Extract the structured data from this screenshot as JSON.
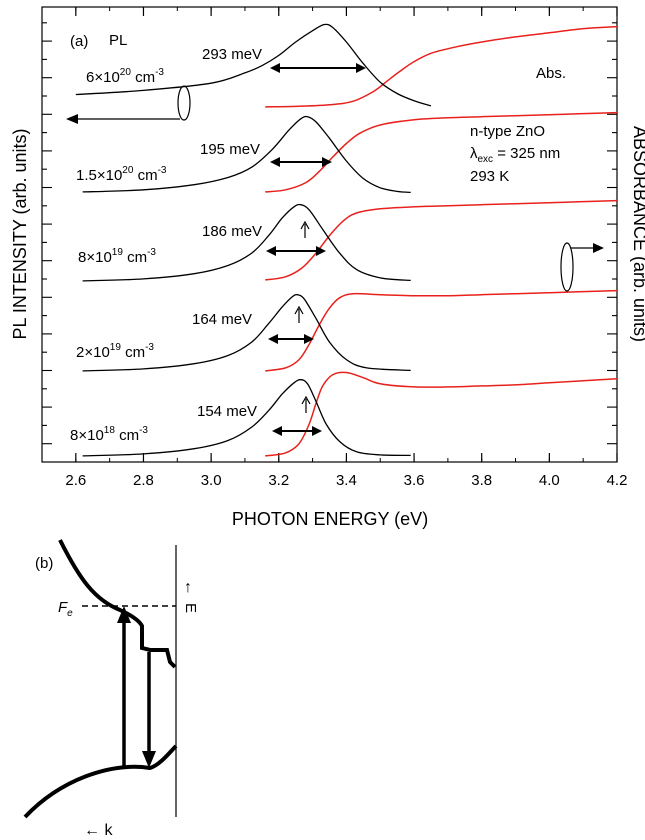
{
  "chart_data": [
    {
      "panel": "(a)",
      "type": "line",
      "xlabel": "PHOTON ENERGY (eV)",
      "ylabel_left": "PL INTENSITY (arb. units)",
      "ylabel_right": "ABSORBANCE (arb. units)",
      "xlim": [
        2.5,
        4.2
      ],
      "x_ticks": [
        "2.6",
        "2.8",
        "3.0",
        "3.2",
        "3.4",
        "3.6",
        "3.8",
        "4.0",
        "4.2"
      ],
      "grid": false,
      "label_pl": "PL",
      "label_abs": "Abs.",
      "sample_info": [
        "n-type ZnO",
        "325 nm",
        "293 K"
      ],
      "lambda_symbol": "λ",
      "lambda_sub": "exc",
      "lambda_eq": " = ",
      "colors": {
        "pl": "#000000",
        "abs": "#e8211c"
      },
      "series": [
        {
          "concentration": "6×10",
          "exponent": "20",
          "unit": " cm",
          "unit_exp": "-3",
          "fwhm": "293 meV",
          "pl": [
            [
              2.6,
              1.5
            ],
            [
              2.8,
              1.9
            ],
            [
              3.0,
              2.6
            ],
            [
              3.1,
              3.6
            ],
            [
              3.15,
              4.3
            ],
            [
              3.2,
              5.3
            ],
            [
              3.25,
              6.6
            ],
            [
              3.3,
              7.7
            ],
            [
              3.335,
              8.3
            ],
            [
              3.36,
              8.0
            ],
            [
              3.4,
              6.6
            ],
            [
              3.45,
              4.5
            ],
            [
              3.5,
              2.7
            ],
            [
              3.55,
              1.6
            ],
            [
              3.6,
              0.9
            ],
            [
              3.65,
              0.4
            ]
          ],
          "abs": [
            [
              3.16,
              0.3
            ],
            [
              3.25,
              0.35
            ],
            [
              3.35,
              0.5
            ],
            [
              3.42,
              0.85
            ],
            [
              3.48,
              1.8
            ],
            [
              3.52,
              2.8
            ],
            [
              3.56,
              3.8
            ],
            [
              3.6,
              4.7
            ],
            [
              3.65,
              5.5
            ],
            [
              3.72,
              6.1
            ],
            [
              3.8,
              6.6
            ],
            [
              3.9,
              7.1
            ],
            [
              4.0,
              7.5
            ],
            [
              4.1,
              7.9
            ],
            [
              4.2,
              8.1
            ]
          ]
        },
        {
          "concentration": "1.5×10",
          "exponent": "20",
          "unit": " cm",
          "unit_exp": "-3",
          "fwhm": "195 meV",
          "pl": [
            [
              2.62,
              0.3
            ],
            [
              2.8,
              0.5
            ],
            [
              2.95,
              1.0
            ],
            [
              3.05,
              1.7
            ],
            [
              3.12,
              2.7
            ],
            [
              3.18,
              4.4
            ],
            [
              3.23,
              6.3
            ],
            [
              3.265,
              7.4
            ],
            [
              3.285,
              7.6
            ],
            [
              3.31,
              7.1
            ],
            [
              3.35,
              5.5
            ],
            [
              3.4,
              3.3
            ],
            [
              3.45,
              1.6
            ],
            [
              3.5,
              0.7
            ],
            [
              3.55,
              0.35
            ],
            [
              3.59,
              0.25
            ]
          ],
          "abs": [
            [
              3.16,
              0.3
            ],
            [
              3.22,
              0.5
            ],
            [
              3.28,
              1.2
            ],
            [
              3.32,
              2.3
            ],
            [
              3.36,
              3.7
            ],
            [
              3.4,
              5.0
            ],
            [
              3.44,
              6.0
            ],
            [
              3.5,
              6.8
            ],
            [
              3.6,
              7.3
            ],
            [
              3.7,
              7.5
            ],
            [
              3.8,
              7.6
            ],
            [
              3.9,
              7.7
            ],
            [
              4.0,
              7.8
            ],
            [
              4.1,
              7.9
            ],
            [
              4.2,
              8.0
            ]
          ]
        },
        {
          "concentration": "8×10",
          "exponent": "19",
          "unit": " cm",
          "unit_exp": "-3",
          "fwhm": "186 meV",
          "pl": [
            [
              2.62,
              0.2
            ],
            [
              2.8,
              0.4
            ],
            [
              2.95,
              0.9
            ],
            [
              3.05,
              1.7
            ],
            [
              3.12,
              2.9
            ],
            [
              3.17,
              4.6
            ],
            [
              3.21,
              6.3
            ],
            [
              3.245,
              7.4
            ],
            [
              3.265,
              7.6
            ],
            [
              3.29,
              7.1
            ],
            [
              3.33,
              5.2
            ],
            [
              3.38,
              2.9
            ],
            [
              3.43,
              1.3
            ],
            [
              3.5,
              0.5
            ],
            [
              3.59,
              0.25
            ]
          ],
          "abs": [
            [
              3.16,
              0.3
            ],
            [
              3.22,
              0.6
            ],
            [
              3.27,
              1.5
            ],
            [
              3.31,
              2.9
            ],
            [
              3.35,
              4.6
            ],
            [
              3.39,
              6.0
            ],
            [
              3.43,
              6.8
            ],
            [
              3.5,
              7.2
            ],
            [
              3.6,
              7.4
            ],
            [
              3.7,
              7.5
            ],
            [
              3.8,
              7.6
            ],
            [
              3.9,
              7.7
            ],
            [
              4.0,
              7.8
            ],
            [
              4.1,
              7.9
            ],
            [
              4.2,
              8.0
            ]
          ]
        },
        {
          "concentration": "2×10",
          "exponent": "19",
          "unit": " cm",
          "unit_exp": "-3",
          "fwhm": "164 meV",
          "pl": [
            [
              2.62,
              0.2
            ],
            [
              2.8,
              0.4
            ],
            [
              2.95,
              0.9
            ],
            [
              3.05,
              1.7
            ],
            [
              3.12,
              3.0
            ],
            [
              3.17,
              4.8
            ],
            [
              3.21,
              6.4
            ],
            [
              3.24,
              7.4
            ],
            [
              3.255,
              7.6
            ],
            [
              3.275,
              7.2
            ],
            [
              3.31,
              5.3
            ],
            [
              3.35,
              3.0
            ],
            [
              3.4,
              1.3
            ],
            [
              3.46,
              0.5
            ],
            [
              3.59,
              0.25
            ]
          ],
          "abs": [
            [
              3.16,
              0.2
            ],
            [
              3.22,
              0.5
            ],
            [
              3.26,
              1.3
            ],
            [
              3.29,
              2.8
            ],
            [
              3.32,
              4.7
            ],
            [
              3.35,
              6.3
            ],
            [
              3.38,
              7.3
            ],
            [
              3.42,
              7.7
            ],
            [
              3.5,
              7.6
            ],
            [
              3.6,
              7.5
            ],
            [
              3.7,
              7.5
            ],
            [
              3.8,
              7.6
            ],
            [
              3.9,
              7.7
            ],
            [
              4.0,
              7.8
            ],
            [
              4.1,
              7.9
            ],
            [
              4.2,
              8.0
            ]
          ]
        },
        {
          "concentration": "8×10",
          "exponent": "18",
          "unit": " cm",
          "unit_exp": "-3",
          "fwhm": "154 meV",
          "pl": [
            [
              2.62,
              0.2
            ],
            [
              2.8,
              0.4
            ],
            [
              2.95,
              0.9
            ],
            [
              3.05,
              1.7
            ],
            [
              3.12,
              3.0
            ],
            [
              3.17,
              4.6
            ],
            [
              3.21,
              6.2
            ],
            [
              3.245,
              7.3
            ],
            [
              3.265,
              7.6
            ],
            [
              3.285,
              7.2
            ],
            [
              3.31,
              5.5
            ],
            [
              3.34,
              3.3
            ],
            [
              3.38,
              1.6
            ],
            [
              3.43,
              0.6
            ],
            [
              3.5,
              0.3
            ],
            [
              3.59,
              0.25
            ]
          ],
          "abs": [
            [
              3.16,
              0.2
            ],
            [
              3.22,
              0.5
            ],
            [
              3.26,
              1.4
            ],
            [
              3.29,
              3.3
            ],
            [
              3.31,
              5.3
            ],
            [
              3.33,
              7.0
            ],
            [
              3.36,
              8.1
            ],
            [
              3.4,
              8.3
            ],
            [
              3.45,
              7.8
            ],
            [
              3.5,
              7.2
            ],
            [
              3.6,
              6.9
            ],
            [
              3.7,
              6.9
            ],
            [
              3.8,
              7.0
            ],
            [
              3.9,
              7.1
            ],
            [
              4.0,
              7.3
            ],
            [
              4.1,
              7.5
            ],
            [
              4.2,
              7.7
            ]
          ]
        }
      ]
    },
    {
      "panel": "(b)",
      "type": "diagram",
      "fermi_label": "F",
      "fermi_sub": "e",
      "energy_label": "E",
      "energy_arrow": "↑",
      "k_label": "← k"
    }
  ]
}
